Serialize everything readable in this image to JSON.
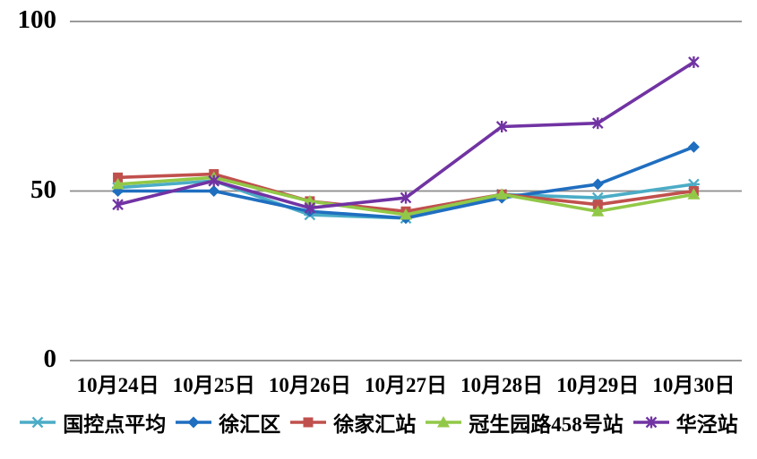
{
  "chart_data": {
    "type": "line",
    "title": "",
    "xlabel": "",
    "ylabel": "",
    "categories": [
      "10月24日",
      "10月25日",
      "10月26日",
      "10月27日",
      "10月28日",
      "10月29日",
      "10月30日"
    ],
    "series": [
      {
        "name": "国控点平均",
        "color": "#4BACC6",
        "marker": "asterisk-h",
        "values": [
          51,
          53,
          43,
          42,
          49,
          48,
          52
        ]
      },
      {
        "name": "徐汇区",
        "color": "#1F6EC0",
        "marker": "diamond",
        "values": [
          50,
          50,
          44,
          42,
          48,
          52,
          63
        ]
      },
      {
        "name": "徐家汇站",
        "color": "#C0504D",
        "marker": "square",
        "values": [
          54,
          55,
          47,
          44,
          49,
          46,
          50
        ]
      },
      {
        "name": "冠生园路458号站",
        "color": "#92C847",
        "marker": "triangle",
        "values": [
          52,
          54,
          47,
          43,
          49,
          44,
          49
        ]
      },
      {
        "name": "华泾站",
        "color": "#7133A3",
        "marker": "asterisk",
        "values": [
          46,
          53,
          45,
          48,
          69,
          70,
          88
        ]
      }
    ],
    "y_axis": {
      "ticks": [
        0,
        50,
        100
      ],
      "min": 0,
      "max": 100
    },
    "grid": "horizontal-only",
    "gridline_color": "#8C8C8C",
    "text_color": "#000000",
    "legend_position": "bottom",
    "background": "#FFFFFF"
  }
}
